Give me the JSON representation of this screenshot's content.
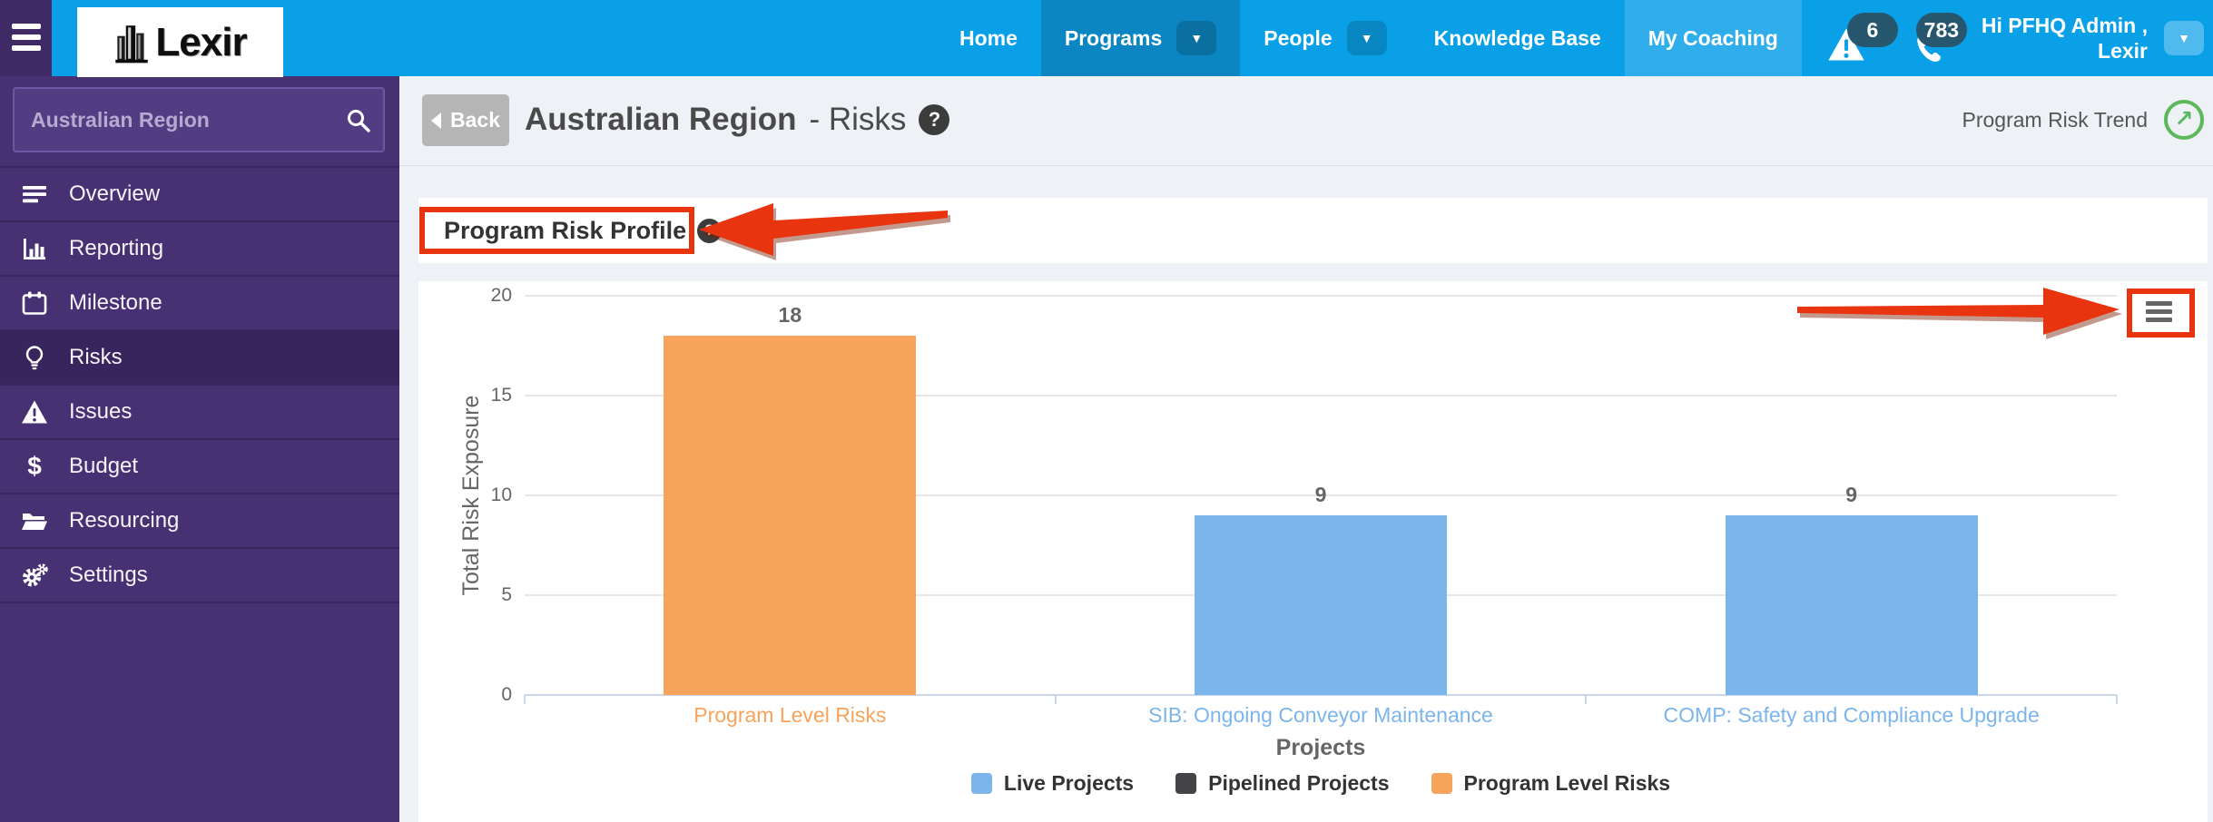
{
  "navbar": {
    "brand": "Lexir",
    "menu": [
      {
        "label": "Home"
      },
      {
        "label": "Programs",
        "has_caret": true,
        "active": true
      },
      {
        "label": "People",
        "has_caret": true
      },
      {
        "label": "Knowledge Base"
      },
      {
        "label": "My Coaching",
        "highlighted": true
      }
    ],
    "alerts_count": "6",
    "messages_count": "783",
    "greeting_line1": "Hi PFHQ Admin ,",
    "greeting_line2": "Lexir"
  },
  "sidebar": {
    "search_value": "Australian Region",
    "search_icon": "search-icon",
    "items": [
      {
        "label": "Overview",
        "icon": "align-left-icon"
      },
      {
        "label": "Reporting",
        "icon": "bar-chart-icon"
      },
      {
        "label": "Milestone",
        "icon": "calendar-icon"
      },
      {
        "label": "Risks",
        "icon": "lightbulb-icon",
        "active": true
      },
      {
        "label": "Issues",
        "icon": "warning-icon"
      },
      {
        "label": "Budget",
        "icon": "dollar-icon"
      },
      {
        "label": "Resourcing",
        "icon": "folder-open-icon"
      },
      {
        "label": "Settings",
        "icon": "gears-icon"
      }
    ]
  },
  "header": {
    "back_label": "Back",
    "title": "Australian Region",
    "subtitle": "- Risks",
    "trend_label": "Program Risk Trend"
  },
  "panel": {
    "title": "Program Risk Profile"
  },
  "chart_data": {
    "type": "bar",
    "title": "Program Risk Profile",
    "categories": [
      "Program Level Risks",
      "SIB: Ongoing Conveyor Maintenance",
      "COMP: Safety and Compliance Upgrade"
    ],
    "values": [
      18,
      9,
      9
    ],
    "bar_colors": [
      "#f7a35c",
      "#7cb5ec",
      "#7cb5ec"
    ],
    "category_colors": [
      "#f7a35c",
      "#7cb5ec",
      "#7cb5ec"
    ],
    "xlabel": "Projects",
    "ylabel": "Total Risk Exposure",
    "ylim": [
      0,
      20
    ],
    "yticks": [
      0,
      5,
      10,
      15,
      20
    ],
    "grid": true,
    "legend_position": "bottom",
    "legend": [
      {
        "label": "Live Projects",
        "color": "#7cb5ec"
      },
      {
        "label": "Pipelined Projects",
        "color": "#434348"
      },
      {
        "label": "Program Level Risks",
        "color": "#f7a35c"
      }
    ]
  },
  "colors": {
    "navbar": "#0aa0e8",
    "navbar_active": "#0c86c2",
    "navbar_highlight": "#30aeeb",
    "badge": "#26576e",
    "sidebar": "#483173",
    "sidebar_active": "#38255e",
    "content_bg": "#eef1f5",
    "annotation_red": "#e8350f",
    "trend_green": "#5cb85c",
    "grid": "#e7e7e7",
    "axis": "#ccd6eb"
  }
}
